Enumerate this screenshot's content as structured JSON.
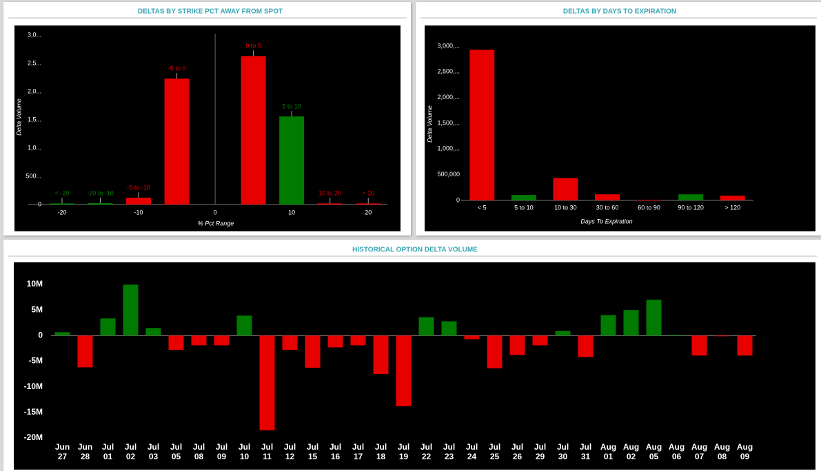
{
  "chart_data": [
    {
      "type": "bar",
      "title": "DELTAS BY STRIKE PCT AWAY FROM SPOT",
      "x_label": "% Pct Range",
      "y_label": "Delta Volume",
      "categories": [
        "< -20",
        "-20 to -10",
        "-5 to -10",
        "-5 to 0",
        "0 to 5",
        "5 to 10",
        "10 to 20",
        "> 20"
      ],
      "x": [
        -20,
        -15,
        -10,
        -5,
        5,
        10,
        15,
        20
      ],
      "values": [
        20000,
        25000,
        120000,
        2230000,
        2630000,
        1560000,
        20000,
        20000
      ],
      "colors": [
        "#007a00",
        "#007a00",
        "#e60000",
        "#e60000",
        "#e60000",
        "#007a00",
        "#e60000",
        "#e60000"
      ],
      "xlim": [
        -24.5,
        22.5
      ],
      "xticks": [
        -20,
        -10,
        0,
        10,
        20
      ],
      "ylim": [
        0,
        3000000
      ],
      "yticks": [
        0,
        {
          "value": 500000,
          "label": "500..."
        },
        {
          "value": 1000000,
          "label": "1,0..."
        },
        {
          "value": 1500000,
          "label": "1,5..."
        },
        {
          "value": 2000000,
          "label": "2,0..."
        },
        {
          "value": 2500000,
          "label": "2,5..."
        },
        {
          "value": 3000000,
          "label": "3,0..."
        }
      ],
      "zero_line": true
    },
    {
      "type": "bar",
      "title": "DELTAS BY DAYS TO EXPIRATION",
      "x_label": "Days To Expiration",
      "y_label": "Delta Volume",
      "categories": [
        "< 5",
        "5 to 10",
        "10 to 30",
        "30 to 60",
        "60 to 90",
        "90 to 120",
        "> 120"
      ],
      "values": [
        2930000,
        105000,
        434000,
        118000,
        10000,
        118000,
        92000
      ],
      "colors": [
        "#e60000",
        "#007a00",
        "#e60000",
        "#e60000",
        "#e60000",
        "#007a00",
        "#e60000"
      ],
      "ylim": [
        0,
        3000000
      ],
      "yticks": [
        0,
        {
          "value": 500000,
          "label": "500,000"
        },
        {
          "value": 1000000,
          "label": "1,000,..."
        },
        {
          "value": 1500000,
          "label": "1,500,..."
        },
        {
          "value": 2000000,
          "label": "2,000,..."
        },
        {
          "value": 2500000,
          "label": "2,500,..."
        },
        {
          "value": 3000000,
          "label": "3,000,..."
        }
      ]
    },
    {
      "type": "bar",
      "title": "HISTORICAL OPTION DELTA VOLUME",
      "categories": [
        "Jun 27",
        "Jun 28",
        "Jul 01",
        "Jul 02",
        "Jul 03",
        "Jul 05",
        "Jul 08",
        "Jul 09",
        "Jul 10",
        "Jul 11",
        "Jul 12",
        "Jul 15",
        "Jul 16",
        "Jul 17",
        "Jul 18",
        "Jul 19",
        "Jul 22",
        "Jul 23",
        "Jul 24",
        "Jul 25",
        "Jul 26",
        "Jul 29",
        "Jul 30",
        "Jul 31",
        "Aug 01",
        "Aug 02",
        "Aug 05",
        "Aug 06",
        "Aug 07",
        "Aug 08",
        "Aug 09"
      ],
      "values": [
        670000,
        -6200000,
        3360000,
        9950000,
        1480000,
        -2800000,
        -1900000,
        -1900000,
        3900000,
        -18500000,
        -2800000,
        -6300000,
        -2300000,
        -1900000,
        -7500000,
        -13800000,
        3600000,
        2800000,
        -700000,
        -6400000,
        -3800000,
        -1900000,
        900000,
        -4200000,
        4000000,
        5000000,
        7000000,
        150000,
        -3900000,
        -100000,
        -3900000
      ],
      "positive_color": "#007a00",
      "negative_color": "#e60000",
      "ylim": [
        -20000000,
        10000000
      ],
      "yticks": [
        {
          "value": -20000000,
          "label": "-20M"
        },
        {
          "value": -15000000,
          "label": "-15M"
        },
        {
          "value": -10000000,
          "label": "-10M"
        },
        {
          "value": -5000000,
          "label": "-5M"
        },
        0,
        {
          "value": 5000000,
          "label": "5M"
        },
        {
          "value": 10000000,
          "label": "10M"
        }
      ]
    }
  ]
}
